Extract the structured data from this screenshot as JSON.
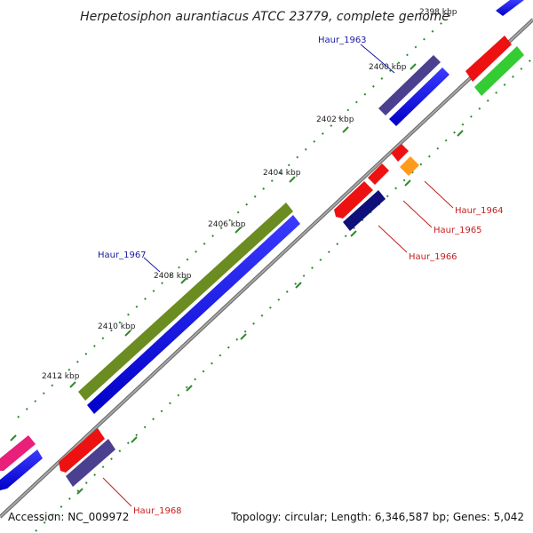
{
  "title": "Herpetosiphon aurantiacus ATCC 23779, complete genome",
  "footer": {
    "accession": "Accession: NC_009972",
    "summary": "Topology: circular; Length: 6,346,587 bp; Genes: 5,042"
  },
  "colors": {
    "backbone": "#888888",
    "tick": "#2e8b2e",
    "label_forward": "#1a1aa0",
    "label_reverse": "#c81e1e"
  },
  "ticks": [
    {
      "label": "2398 kbp"
    },
    {
      "label": "2400 kbp"
    },
    {
      "label": "2402 kbp"
    },
    {
      "label": "2404 kbp"
    },
    {
      "label": "2406 kbp"
    },
    {
      "label": "2408 kbp"
    },
    {
      "label": "2410 kbp"
    },
    {
      "label": "2412 kbp"
    }
  ],
  "labels": {
    "haur1963": "Haur_1963",
    "haur1964": "Haur_1964",
    "haur1965": "Haur_1965",
    "haur1966": "Haur_1966",
    "haur1967": "Haur_1967",
    "haur1968": "Haur_1968"
  }
}
